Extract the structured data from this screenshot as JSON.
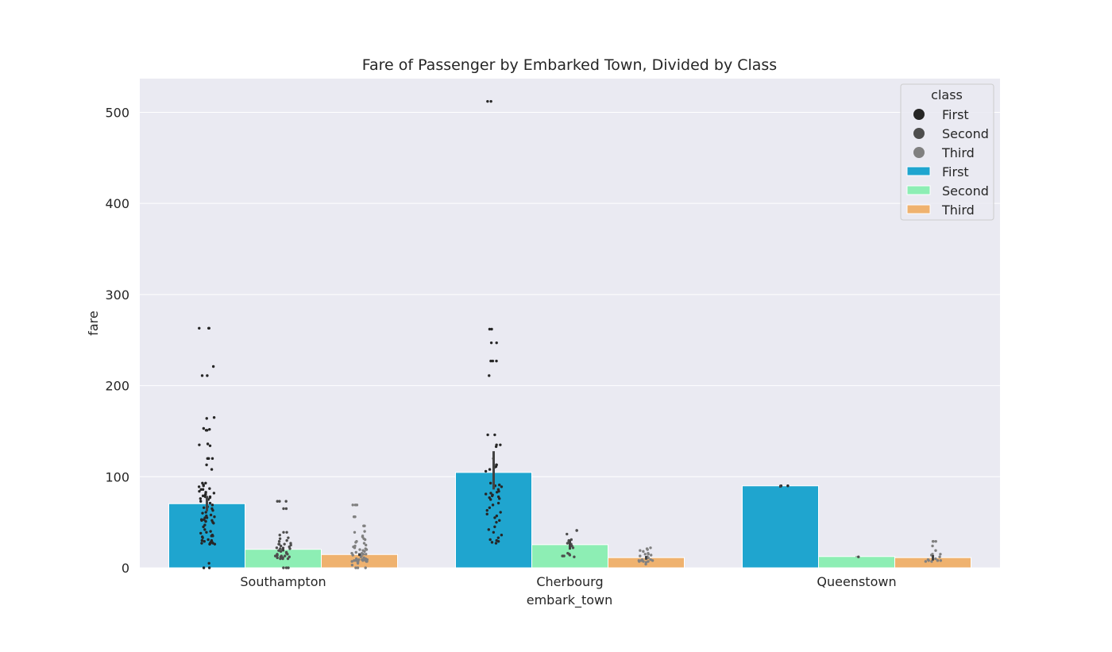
{
  "chart_data": {
    "type": "bar",
    "title": "Fare of Passenger by Embarked Town, Divided by Class",
    "xlabel": "embark_town",
    "ylabel": "fare",
    "ylim": [
      0,
      537
    ],
    "yticks": [
      0,
      100,
      200,
      300,
      400,
      500
    ],
    "grid": true,
    "legend": {
      "title": "class",
      "placement": "top-right"
    },
    "categories": [
      "Southampton",
      "Cherbourg",
      "Queenstown"
    ],
    "series": [
      {
        "name": "First",
        "color": "#1fa5cf",
        "values": [
          70.4,
          104.7,
          90.0
        ],
        "ci": [
          [
            62,
            79
          ],
          [
            86,
            128
          ],
          [
            88,
            91
          ]
        ]
      },
      {
        "name": "Second",
        "color": "#8deeb4",
        "values": [
          20.3,
          25.4,
          12.4
        ],
        "ci": [
          [
            18,
            23
          ],
          [
            20,
            31
          ],
          [
            12,
            12.5
          ]
        ]
      },
      {
        "name": "Third",
        "color": "#efb26f",
        "values": [
          14.6,
          11.2,
          11.2
        ],
        "ci": [
          [
            13,
            16
          ],
          [
            9,
            13
          ],
          [
            8,
            14
          ]
        ]
      }
    ],
    "strip_series": [
      {
        "name": "First",
        "color": "#262626",
        "points": [
          [
            0,
            0
          ],
          [
            0,
            0
          ],
          [
            0,
            5
          ],
          [
            0,
            26
          ],
          [
            0,
            26
          ],
          [
            0,
            26
          ],
          [
            0,
            27
          ],
          [
            0,
            27
          ],
          [
            0,
            27
          ],
          [
            0,
            28
          ],
          [
            0,
            28
          ],
          [
            0,
            29
          ],
          [
            0,
            30
          ],
          [
            0,
            30
          ],
          [
            0,
            31
          ],
          [
            0,
            33
          ],
          [
            0,
            34
          ],
          [
            0,
            35
          ],
          [
            0,
            35
          ],
          [
            0,
            36
          ],
          [
            0,
            38
          ],
          [
            0,
            39
          ],
          [
            0,
            40
          ],
          [
            0,
            42
          ],
          [
            0,
            45
          ],
          [
            0,
            47
          ],
          [
            0,
            49
          ],
          [
            0,
            50
          ],
          [
            0,
            51
          ],
          [
            0,
            51
          ],
          [
            0,
            52
          ],
          [
            0,
            52
          ],
          [
            0,
            53
          ],
          [
            0,
            53
          ],
          [
            0,
            55
          ],
          [
            0,
            55
          ],
          [
            0,
            56
          ],
          [
            0,
            57
          ],
          [
            0,
            58
          ],
          [
            0,
            60
          ],
          [
            0,
            61
          ],
          [
            0,
            63
          ],
          [
            0,
            65
          ],
          [
            0,
            66
          ],
          [
            0,
            67
          ],
          [
            0,
            69
          ],
          [
            0,
            71
          ],
          [
            0,
            73
          ],
          [
            0,
            75
          ],
          [
            0,
            76
          ],
          [
            0,
            77
          ],
          [
            0,
            78
          ],
          [
            0,
            78
          ],
          [
            0,
            79
          ],
          [
            0,
            79
          ],
          [
            0,
            80
          ],
          [
            0,
            81
          ],
          [
            0,
            82
          ],
          [
            0,
            83
          ],
          [
            0,
            84
          ],
          [
            0,
            86
          ],
          [
            0,
            86
          ],
          [
            0,
            87
          ],
          [
            0,
            89
          ],
          [
            0,
            90
          ],
          [
            0,
            91
          ],
          [
            0,
            93
          ],
          [
            0,
            93
          ],
          [
            0,
            108
          ],
          [
            0,
            113
          ],
          [
            0,
            120
          ],
          [
            0,
            120
          ],
          [
            0,
            120
          ],
          [
            0,
            134
          ],
          [
            0,
            135
          ],
          [
            0,
            136
          ],
          [
            0,
            151
          ],
          [
            0,
            151
          ],
          [
            0,
            152
          ],
          [
            0,
            153
          ],
          [
            0,
            164
          ],
          [
            0,
            165
          ],
          [
            0,
            211
          ],
          [
            0,
            211
          ],
          [
            0,
            221
          ],
          [
            0,
            263
          ],
          [
            0,
            263
          ],
          [
            0,
            263
          ],
          [
            1,
            27
          ],
          [
            1,
            28
          ],
          [
            1,
            29
          ],
          [
            1,
            30
          ],
          [
            1,
            31
          ],
          [
            1,
            33
          ],
          [
            1,
            36
          ],
          [
            1,
            39
          ],
          [
            1,
            42
          ],
          [
            1,
            45
          ],
          [
            1,
            50
          ],
          [
            1,
            52
          ],
          [
            1,
            55
          ],
          [
            1,
            57
          ],
          [
            1,
            59
          ],
          [
            1,
            61
          ],
          [
            1,
            63
          ],
          [
            1,
            66
          ],
          [
            1,
            69
          ],
          [
            1,
            71
          ],
          [
            1,
            75
          ],
          [
            1,
            76
          ],
          [
            1,
            77
          ],
          [
            1,
            78
          ],
          [
            1,
            79
          ],
          [
            1,
            80
          ],
          [
            1,
            81
          ],
          [
            1,
            82
          ],
          [
            1,
            83
          ],
          [
            1,
            84
          ],
          [
            1,
            86
          ],
          [
            1,
            89
          ],
          [
            1,
            90
          ],
          [
            1,
            91
          ],
          [
            1,
            93
          ],
          [
            1,
            106
          ],
          [
            1,
            108
          ],
          [
            1,
            110
          ],
          [
            1,
            111
          ],
          [
            1,
            113
          ],
          [
            1,
            113
          ],
          [
            1,
            120
          ],
          [
            1,
            133
          ],
          [
            1,
            135
          ],
          [
            1,
            135
          ],
          [
            1,
            146
          ],
          [
            1,
            146
          ],
          [
            1,
            211
          ],
          [
            1,
            227
          ],
          [
            1,
            227
          ],
          [
            1,
            227
          ],
          [
            1,
            247
          ],
          [
            1,
            247
          ],
          [
            1,
            262
          ],
          [
            1,
            262
          ],
          [
            1,
            512
          ],
          [
            1,
            512
          ],
          [
            2,
            90
          ],
          [
            2,
            90
          ]
        ]
      },
      {
        "name": "Second",
        "color": "#4d4d4d",
        "points": [
          [
            0,
            0
          ],
          [
            0,
            0
          ],
          [
            0,
            0
          ],
          [
            0,
            10
          ],
          [
            0,
            10
          ],
          [
            0,
            10
          ],
          [
            0,
            11
          ],
          [
            0,
            11
          ],
          [
            0,
            12
          ],
          [
            0,
            12
          ],
          [
            0,
            13
          ],
          [
            0,
            13
          ],
          [
            0,
            13
          ],
          [
            0,
            13
          ],
          [
            0,
            14
          ],
          [
            0,
            14
          ],
          [
            0,
            15
          ],
          [
            0,
            15
          ],
          [
            0,
            16
          ],
          [
            0,
            17
          ],
          [
            0,
            18
          ],
          [
            0,
            19
          ],
          [
            0,
            20
          ],
          [
            0,
            21
          ],
          [
            0,
            21
          ],
          [
            0,
            22
          ],
          [
            0,
            23
          ],
          [
            0,
            24
          ],
          [
            0,
            25
          ],
          [
            0,
            26
          ],
          [
            0,
            26
          ],
          [
            0,
            26
          ],
          [
            0,
            27
          ],
          [
            0,
            29
          ],
          [
            0,
            30
          ],
          [
            0,
            32
          ],
          [
            0,
            33
          ],
          [
            0,
            36
          ],
          [
            0,
            39
          ],
          [
            0,
            39
          ],
          [
            0,
            65
          ],
          [
            0,
            65
          ],
          [
            0,
            73
          ],
          [
            0,
            73
          ],
          [
            0,
            73
          ],
          [
            1,
            12
          ],
          [
            1,
            13
          ],
          [
            1,
            13
          ],
          [
            1,
            14
          ],
          [
            1,
            15
          ],
          [
            1,
            16
          ],
          [
            1,
            22
          ],
          [
            1,
            24
          ],
          [
            1,
            26
          ],
          [
            1,
            27
          ],
          [
            1,
            29
          ],
          [
            1,
            30
          ],
          [
            1,
            31
          ],
          [
            1,
            37
          ],
          [
            1,
            41
          ],
          [
            1,
            41
          ],
          [
            2,
            12
          ]
        ]
      },
      {
        "name": "Third",
        "color": "#808080",
        "points": [
          [
            0,
            0
          ],
          [
            0,
            0
          ],
          [
            0,
            0
          ],
          [
            0,
            3
          ],
          [
            0,
            5
          ],
          [
            0,
            6
          ],
          [
            0,
            7
          ],
          [
            0,
            7
          ],
          [
            0,
            7
          ],
          [
            0,
            7
          ],
          [
            0,
            8
          ],
          [
            0,
            8
          ],
          [
            0,
            8
          ],
          [
            0,
            8
          ],
          [
            0,
            8
          ],
          [
            0,
            8
          ],
          [
            0,
            9
          ],
          [
            0,
            9
          ],
          [
            0,
            9
          ],
          [
            0,
            9
          ],
          [
            0,
            10
          ],
          [
            0,
            10
          ],
          [
            0,
            11
          ],
          [
            0,
            12
          ],
          [
            0,
            13
          ],
          [
            0,
            14
          ],
          [
            0,
            14
          ],
          [
            0,
            15
          ],
          [
            0,
            15
          ],
          [
            0,
            16
          ],
          [
            0,
            16
          ],
          [
            0,
            17
          ],
          [
            0,
            18
          ],
          [
            0,
            19
          ],
          [
            0,
            20
          ],
          [
            0,
            20
          ],
          [
            0,
            21
          ],
          [
            0,
            22
          ],
          [
            0,
            23
          ],
          [
            0,
            24
          ],
          [
            0,
            25
          ],
          [
            0,
            27
          ],
          [
            0,
            28
          ],
          [
            0,
            29
          ],
          [
            0,
            31
          ],
          [
            0,
            32
          ],
          [
            0,
            34
          ],
          [
            0,
            35
          ],
          [
            0,
            39
          ],
          [
            0,
            40
          ],
          [
            0,
            46
          ],
          [
            0,
            46
          ],
          [
            0,
            56
          ],
          [
            0,
            56
          ],
          [
            0,
            69
          ],
          [
            0,
            69
          ],
          [
            0,
            69
          ],
          [
            1,
            4
          ],
          [
            1,
            6
          ],
          [
            1,
            7
          ],
          [
            1,
            7
          ],
          [
            1,
            7
          ],
          [
            1,
            8
          ],
          [
            1,
            8
          ],
          [
            1,
            8
          ],
          [
            1,
            9
          ],
          [
            1,
            9
          ],
          [
            1,
            10
          ],
          [
            1,
            11
          ],
          [
            1,
            12
          ],
          [
            1,
            13
          ],
          [
            1,
            14
          ],
          [
            1,
            15
          ],
          [
            1,
            15
          ],
          [
            1,
            16
          ],
          [
            1,
            18
          ],
          [
            1,
            19
          ],
          [
            1,
            20
          ],
          [
            1,
            21
          ],
          [
            1,
            22
          ],
          [
            2,
            7
          ],
          [
            2,
            7
          ],
          [
            2,
            8
          ],
          [
            2,
            8
          ],
          [
            2,
            8
          ],
          [
            2,
            8
          ],
          [
            2,
            9
          ],
          [
            2,
            10
          ],
          [
            2,
            12
          ],
          [
            2,
            14
          ],
          [
            2,
            15
          ],
          [
            2,
            15
          ],
          [
            2,
            19
          ],
          [
            2,
            24
          ],
          [
            2,
            29
          ],
          [
            2,
            29
          ],
          [
            2,
            29
          ]
        ]
      }
    ]
  }
}
